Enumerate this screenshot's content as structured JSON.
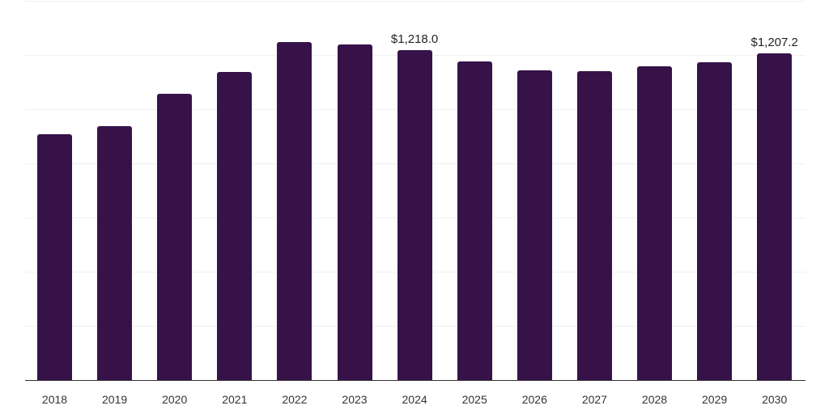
{
  "chart_data": {
    "type": "bar",
    "title": "",
    "xlabel": "",
    "ylabel": "",
    "categories": [
      "2018",
      "2019",
      "2020",
      "2021",
      "2022",
      "2023",
      "2024",
      "2025",
      "2026",
      "2027",
      "2028",
      "2029",
      "2030"
    ],
    "values": [
      907,
      937,
      1057,
      1137,
      1247,
      1238,
      1218.0,
      1176,
      1143,
      1140,
      1158,
      1173,
      1207.2
    ],
    "annotations": [
      {
        "category": "2024",
        "text": "$1,218.0"
      },
      {
        "category": "2030",
        "text": "$1,207.2"
      }
    ],
    "ylim": [
      0,
      1400
    ],
    "grid": true,
    "gridline_step": 200,
    "legend": "none",
    "bar_color": "#371249"
  }
}
